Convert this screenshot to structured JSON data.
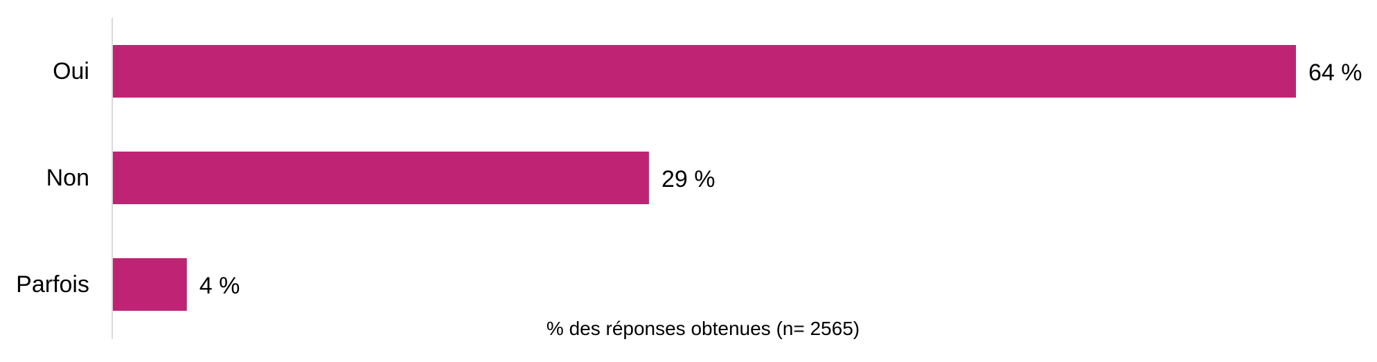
{
  "chart_data": {
    "type": "bar",
    "orientation": "horizontal",
    "categories": [
      "Oui",
      "Non",
      "Parfois"
    ],
    "values": [
      64,
      29,
      4
    ],
    "value_labels": [
      "64 %",
      "29 %",
      "4 %"
    ],
    "xlabel": "% des réponses obtenues (n= 2565)",
    "ylabel": "",
    "title": "",
    "grid": false,
    "legend": "none",
    "bar_color": "#BF2474",
    "axis_color": "#D9D9D9"
  }
}
